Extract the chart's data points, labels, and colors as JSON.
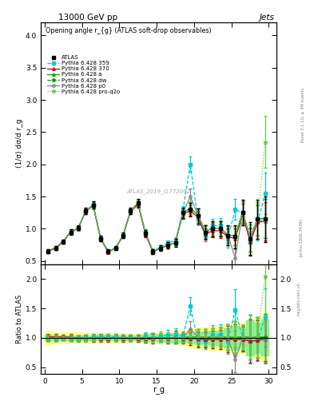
{
  "title_top": "13000 GeV pp",
  "title_right": "Jets",
  "plot_title": "Opening angle r_{g} (ATLAS soft-drop observables)",
  "xlabel": "r_g",
  "ylabel_main": "(1/σ) dσ/d r_g",
  "ylabel_ratio": "Ratio to ATLAS",
  "watermark": "ATLAS_2019_I1772062",
  "rivet_text": "Rivet 3.1.10, ≥ 3M events",
  "arxiv_text": "[arXiv:1306.3436]",
  "mcplots_text": "mcplots.cern.ch",
  "xlim": [
    -0.5,
    31
  ],
  "ylim_main": [
    0.45,
    4.2
  ],
  "ylim_ratio": [
    0.38,
    2.25
  ],
  "xticks": [
    0,
    5,
    10,
    15,
    20,
    25,
    30
  ],
  "yticks_main": [
    0.5,
    1.0,
    1.5,
    2.0,
    2.5,
    3.0,
    3.5,
    4.0
  ],
  "yticks_ratio": [
    0.5,
    1.0,
    1.5,
    2.0
  ],
  "x": [
    0.5,
    1.5,
    2.5,
    3.5,
    4.5,
    5.5,
    6.5,
    7.5,
    8.5,
    9.5,
    10.5,
    11.5,
    12.5,
    13.5,
    14.5,
    15.5,
    16.5,
    17.5,
    18.5,
    19.5,
    20.5,
    21.5,
    22.5,
    23.5,
    24.5,
    25.5,
    26.5,
    27.5,
    28.5,
    29.5
  ],
  "atlas_y": [
    0.65,
    0.7,
    0.8,
    0.95,
    1.02,
    1.28,
    1.37,
    0.85,
    0.65,
    0.7,
    0.9,
    1.28,
    1.4,
    0.93,
    0.65,
    0.7,
    0.75,
    0.78,
    1.25,
    1.3,
    1.2,
    0.95,
    1.0,
    1.0,
    0.9,
    0.88,
    1.25,
    0.85,
    1.15,
    1.15
  ],
  "atlas_yerr": [
    0.03,
    0.03,
    0.03,
    0.04,
    0.04,
    0.05,
    0.06,
    0.04,
    0.03,
    0.03,
    0.04,
    0.05,
    0.06,
    0.05,
    0.04,
    0.04,
    0.05,
    0.06,
    0.08,
    0.1,
    0.12,
    0.1,
    0.12,
    0.12,
    0.15,
    0.18,
    0.2,
    0.25,
    0.3,
    0.35
  ],
  "py359_y": [
    0.65,
    0.7,
    0.8,
    0.95,
    1.0,
    1.27,
    1.38,
    0.86,
    0.66,
    0.71,
    0.9,
    1.27,
    1.38,
    0.95,
    0.65,
    0.72,
    0.78,
    0.82,
    1.28,
    2.0,
    1.15,
    0.9,
    1.05,
    1.05,
    0.85,
    1.3,
    1.25,
    0.8,
    1.1,
    1.55
  ],
  "py359_yerr": [
    0.02,
    0.02,
    0.02,
    0.03,
    0.03,
    0.04,
    0.05,
    0.03,
    0.02,
    0.02,
    0.03,
    0.04,
    0.05,
    0.04,
    0.03,
    0.03,
    0.04,
    0.05,
    0.07,
    0.12,
    0.1,
    0.09,
    0.11,
    0.12,
    0.14,
    0.16,
    0.18,
    0.22,
    0.28,
    0.32
  ],
  "py370_y": [
    0.66,
    0.71,
    0.81,
    0.96,
    1.01,
    1.27,
    1.36,
    0.84,
    0.64,
    0.7,
    0.89,
    1.27,
    1.38,
    0.91,
    0.64,
    0.7,
    0.74,
    0.79,
    1.23,
    1.28,
    1.18,
    0.92,
    0.97,
    0.97,
    0.88,
    0.85,
    1.22,
    0.8,
    1.1,
    1.12
  ],
  "py370_yerr": [
    0.02,
    0.02,
    0.02,
    0.03,
    0.03,
    0.04,
    0.05,
    0.03,
    0.02,
    0.02,
    0.03,
    0.04,
    0.05,
    0.04,
    0.03,
    0.03,
    0.04,
    0.05,
    0.07,
    0.09,
    0.1,
    0.09,
    0.1,
    0.11,
    0.13,
    0.15,
    0.17,
    0.21,
    0.26,
    0.3
  ],
  "pya_y": [
    0.65,
    0.7,
    0.8,
    0.95,
    1.01,
    1.28,
    1.37,
    0.85,
    0.65,
    0.7,
    0.9,
    1.28,
    1.4,
    0.93,
    0.65,
    0.7,
    0.75,
    0.78,
    1.25,
    1.32,
    1.22,
    0.96,
    1.01,
    1.01,
    0.91,
    0.89,
    1.26,
    0.86,
    1.16,
    1.16
  ],
  "pya_yerr": [
    0.02,
    0.02,
    0.02,
    0.03,
    0.03,
    0.04,
    0.05,
    0.03,
    0.02,
    0.02,
    0.03,
    0.04,
    0.05,
    0.04,
    0.03,
    0.03,
    0.04,
    0.05,
    0.07,
    0.09,
    0.1,
    0.09,
    0.1,
    0.11,
    0.13,
    0.15,
    0.17,
    0.21,
    0.26,
    0.3
  ],
  "pydw_y": [
    0.65,
    0.7,
    0.8,
    0.95,
    1.01,
    1.28,
    1.37,
    0.85,
    0.65,
    0.7,
    0.9,
    1.28,
    1.4,
    0.93,
    0.65,
    0.7,
    0.75,
    0.78,
    1.25,
    1.32,
    1.22,
    0.96,
    1.01,
    1.01,
    0.91,
    0.89,
    1.26,
    0.86,
    1.16,
    1.16
  ],
  "pydw_yerr": [
    0.02,
    0.02,
    0.02,
    0.03,
    0.03,
    0.04,
    0.05,
    0.03,
    0.02,
    0.02,
    0.03,
    0.04,
    0.05,
    0.04,
    0.03,
    0.03,
    0.04,
    0.05,
    0.07,
    0.09,
    0.1,
    0.09,
    0.1,
    0.11,
    0.13,
    0.15,
    0.17,
    0.21,
    0.26,
    0.3
  ],
  "pyp0_y": [
    0.65,
    0.7,
    0.8,
    0.95,
    1.01,
    1.28,
    1.37,
    0.85,
    0.65,
    0.7,
    0.9,
    1.28,
    1.4,
    0.93,
    0.65,
    0.7,
    0.75,
    0.78,
    1.25,
    1.5,
    1.22,
    0.96,
    1.01,
    1.01,
    0.91,
    0.55,
    1.26,
    0.86,
    1.16,
    1.1
  ],
  "pyp0_yerr": [
    0.02,
    0.02,
    0.02,
    0.03,
    0.03,
    0.04,
    0.05,
    0.03,
    0.02,
    0.02,
    0.03,
    0.04,
    0.05,
    0.04,
    0.03,
    0.03,
    0.04,
    0.05,
    0.07,
    0.12,
    0.1,
    0.09,
    0.1,
    0.11,
    0.13,
    0.15,
    0.17,
    0.21,
    0.26,
    0.3
  ],
  "pyproq2o_y": [
    0.65,
    0.7,
    0.8,
    0.95,
    1.01,
    1.28,
    1.37,
    0.85,
    0.65,
    0.7,
    0.9,
    1.28,
    1.4,
    0.93,
    0.65,
    0.7,
    0.75,
    0.78,
    1.25,
    1.32,
    1.22,
    0.96,
    1.01,
    1.01,
    0.91,
    0.89,
    1.26,
    0.86,
    1.16,
    2.35
  ],
  "pyproq2o_yerr": [
    0.02,
    0.02,
    0.02,
    0.03,
    0.03,
    0.04,
    0.05,
    0.03,
    0.02,
    0.02,
    0.03,
    0.04,
    0.05,
    0.04,
    0.03,
    0.03,
    0.04,
    0.05,
    0.07,
    0.09,
    0.1,
    0.09,
    0.1,
    0.11,
    0.13,
    0.15,
    0.17,
    0.21,
    0.26,
    0.4
  ],
  "color_atlas": "#000000",
  "color_py359": "#00CCCC",
  "color_py370": "#CC0000",
  "color_pya": "#00AA00",
  "color_pydw": "#009900",
  "color_pyp0": "#888888",
  "color_pyproq2o": "#66CC44",
  "band_color_green": "#90EE90",
  "band_color_yellow": "#FFFF90",
  "legend_entries": [
    "ATLAS",
    "Pythia 6.428 359",
    "Pythia 6.428 370",
    "Pythia 6.428 a",
    "Pythia 6.428 dw",
    "Pythia 6.428 p0",
    "Pythia 6.428 pro-q2o"
  ]
}
